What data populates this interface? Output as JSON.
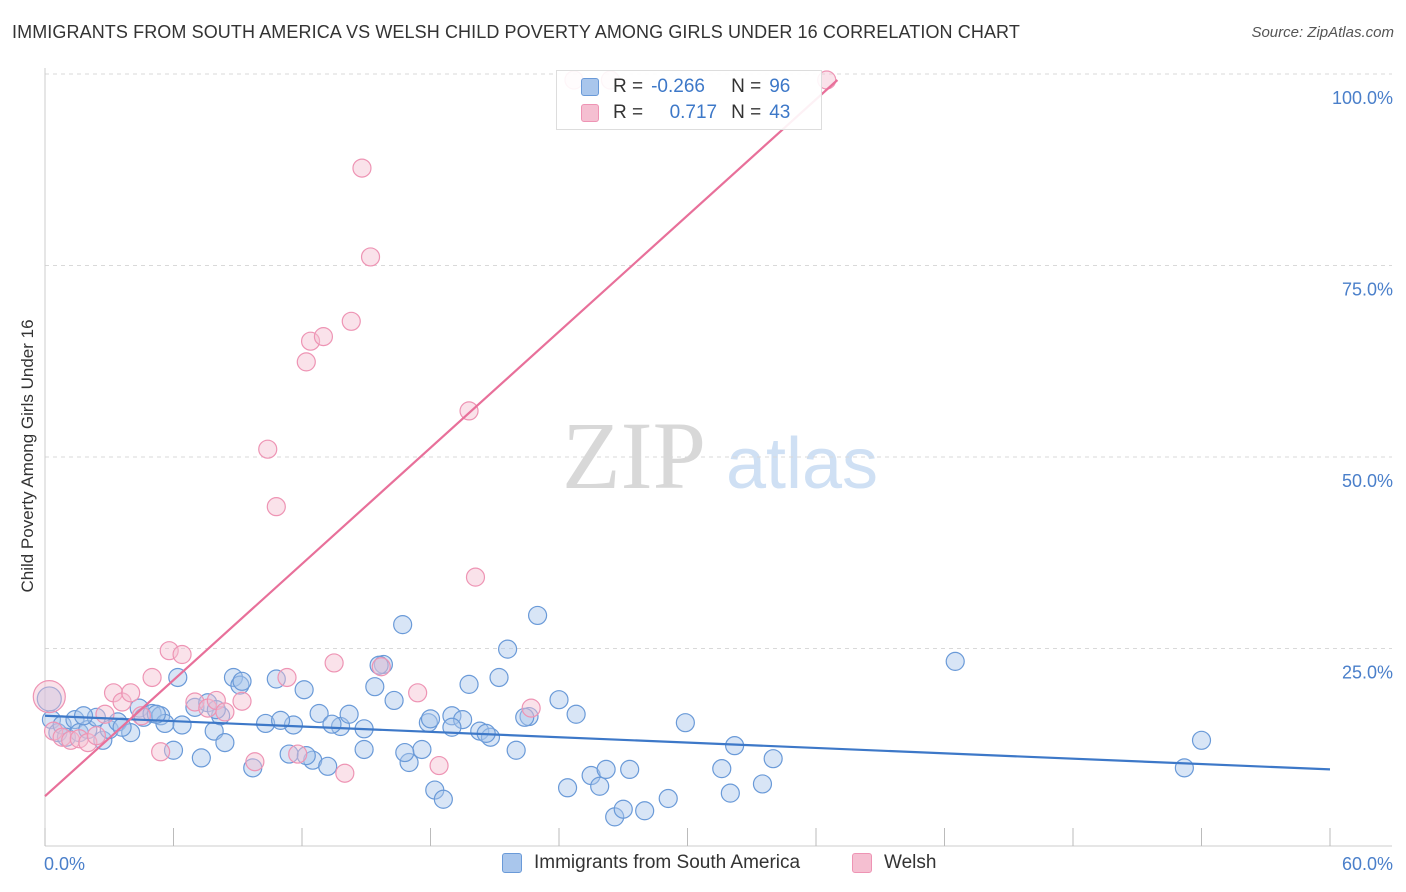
{
  "title": "IMMIGRANTS FROM SOUTH AMERICA VS WELSH CHILD POVERTY AMONG GIRLS UNDER 16 CORRELATION CHART",
  "source": "Source: ZipAtlas.com",
  "watermark": {
    "zip": "ZIP",
    "atlas": "atlas"
  },
  "legend": {
    "rows": [
      {
        "r_label": "R =",
        "r_value": "-0.266",
        "n_label": "N =",
        "n_value": "96"
      },
      {
        "r_label": "R =",
        "r_value": "0.717",
        "n_label": "N =",
        "n_value": "43"
      }
    ]
  },
  "colors": {
    "blue": "#3d78c8",
    "blue_fill": "#a9c6ec",
    "blue_stroke": "#6a9ad8",
    "pink": "#e8709a",
    "pink_fill": "#f5bfd1",
    "pink_stroke": "#ee94b4",
    "grid": "#d9d9d9",
    "tick_label": "#4a7fca"
  },
  "chart_data": {
    "type": "scatter",
    "title": "IMMIGRANTS FROM SOUTH AMERICA VS WELSH CHILD POVERTY AMONG GIRLS UNDER 16 CORRELATION CHART",
    "xlabel": "",
    "ylabel": "Child Poverty Among Girls Under 16",
    "xlim": [
      0,
      60
    ],
    "ylim": [
      0,
      100
    ],
    "x_tick_labels": [
      "0.0%",
      "60.0%"
    ],
    "y_tick_labels": [
      "100.0%",
      "75.0%",
      "50.0%",
      "25.0%"
    ],
    "y_ticks": [
      100,
      75,
      50,
      25
    ],
    "grid": true,
    "legend_position": "bottom",
    "series": [
      {
        "name": "Immigrants from South America",
        "r": -0.266,
        "n": 96,
        "trend": {
          "x": [
            0,
            60
          ],
          "y": [
            17.0,
            10.0
          ]
        },
        "points": [
          [
            0.2,
            19.2
          ],
          [
            0.3,
            16.5
          ],
          [
            0.6,
            14.8
          ],
          [
            0.8,
            15.8
          ],
          [
            1.0,
            14.2
          ],
          [
            1.4,
            16.5
          ],
          [
            1.6,
            14.8
          ],
          [
            2.0,
            15.2
          ],
          [
            2.4,
            16.8
          ],
          [
            2.7,
            13.8
          ],
          [
            3.0,
            15.2
          ],
          [
            3.4,
            16.2
          ],
          [
            4.0,
            14.8
          ],
          [
            4.4,
            18.0
          ],
          [
            4.6,
            16.8
          ],
          [
            5.0,
            17.3
          ],
          [
            5.4,
            17.0
          ],
          [
            5.6,
            16.0
          ],
          [
            6.0,
            12.5
          ],
          [
            6.4,
            15.8
          ],
          [
            7.0,
            18.1
          ],
          [
            7.3,
            11.5
          ],
          [
            7.6,
            18.7
          ],
          [
            7.9,
            15.0
          ],
          [
            8.2,
            17.0
          ],
          [
            8.4,
            13.5
          ],
          [
            8.8,
            22.0
          ],
          [
            9.1,
            21.0
          ],
          [
            9.7,
            10.2
          ],
          [
            10.3,
            16.0
          ],
          [
            10.8,
            21.8
          ],
          [
            11.4,
            12.0
          ],
          [
            11.6,
            15.8
          ],
          [
            12.1,
            20.4
          ],
          [
            12.5,
            11.2
          ],
          [
            12.8,
            17.3
          ],
          [
            13.2,
            10.4
          ],
          [
            13.8,
            15.6
          ],
          [
            14.2,
            17.2
          ],
          [
            14.9,
            12.6
          ],
          [
            15.4,
            20.8
          ],
          [
            15.8,
            23.7
          ],
          [
            16.3,
            19.0
          ],
          [
            16.7,
            28.9
          ],
          [
            17.0,
            10.9
          ],
          [
            17.6,
            12.6
          ],
          [
            17.9,
            16.1
          ],
          [
            18.2,
            7.3
          ],
          [
            18.6,
            6.1
          ],
          [
            19.0,
            17.0
          ],
          [
            19.5,
            16.5
          ],
          [
            19.8,
            21.1
          ],
          [
            20.3,
            15.0
          ],
          [
            20.8,
            14.2
          ],
          [
            21.2,
            22.0
          ],
          [
            21.6,
            25.7
          ],
          [
            22.0,
            12.5
          ],
          [
            22.6,
            16.9
          ],
          [
            23.0,
            30.1
          ],
          [
            24.0,
            19.1
          ],
          [
            24.4,
            7.6
          ],
          [
            24.8,
            17.2
          ],
          [
            25.5,
            9.2
          ],
          [
            25.9,
            7.8
          ],
          [
            26.2,
            10.0
          ],
          [
            26.6,
            3.8
          ],
          [
            27.0,
            4.8
          ],
          [
            27.3,
            10.0
          ],
          [
            28.0,
            4.6
          ],
          [
            29.1,
            6.2
          ],
          [
            29.9,
            16.1
          ],
          [
            31.6,
            10.1
          ],
          [
            32.0,
            6.9
          ],
          [
            32.2,
            13.1
          ],
          [
            33.5,
            8.1
          ],
          [
            34.0,
            11.4
          ],
          [
            42.5,
            24.1
          ],
          [
            53.2,
            10.2
          ],
          [
            54.0,
            13.8
          ],
          [
            6.2,
            22.0
          ],
          [
            9.2,
            21.5
          ],
          [
            11.0,
            16.4
          ],
          [
            13.4,
            15.9
          ],
          [
            14.9,
            15.3
          ],
          [
            15.6,
            23.6
          ],
          [
            16.8,
            12.2
          ],
          [
            18.0,
            16.6
          ],
          [
            20.6,
            14.7
          ],
          [
            22.4,
            16.8
          ],
          [
            3.6,
            15.5
          ],
          [
            1.8,
            17.0
          ],
          [
            5.2,
            17.2
          ],
          [
            8.0,
            17.8
          ],
          [
            12.2,
            11.8
          ],
          [
            19.0,
            15.5
          ]
        ]
      },
      {
        "name": "Welsh",
        "r": 0.717,
        "n": 43,
        "trend": {
          "x": [
            0,
            37
          ],
          "y": [
            6.5,
            100.0
          ]
        },
        "points": [
          [
            0.2,
            19.5
          ],
          [
            0.4,
            15.0
          ],
          [
            0.8,
            14.2
          ],
          [
            1.2,
            13.8
          ],
          [
            1.6,
            14.0
          ],
          [
            2.0,
            13.5
          ],
          [
            2.4,
            14.4
          ],
          [
            2.8,
            17.2
          ],
          [
            3.2,
            20.0
          ],
          [
            3.6,
            18.8
          ],
          [
            4.0,
            20.0
          ],
          [
            4.5,
            17.0
          ],
          [
            5.0,
            22.0
          ],
          [
            5.4,
            12.3
          ],
          [
            5.8,
            25.5
          ],
          [
            6.4,
            25.0
          ],
          [
            7.0,
            18.8
          ],
          [
            7.6,
            18.0
          ],
          [
            8.0,
            19.0
          ],
          [
            8.4,
            17.5
          ],
          [
            9.2,
            18.9
          ],
          [
            9.8,
            11.0
          ],
          [
            10.4,
            51.8
          ],
          [
            10.8,
            44.3
          ],
          [
            11.3,
            22.0
          ],
          [
            11.8,
            12.0
          ],
          [
            12.2,
            63.2
          ],
          [
            12.4,
            65.9
          ],
          [
            13.0,
            66.5
          ],
          [
            13.5,
            23.9
          ],
          [
            14.0,
            9.5
          ],
          [
            14.3,
            68.5
          ],
          [
            14.8,
            88.5
          ],
          [
            15.2,
            76.9
          ],
          [
            15.7,
            23.4
          ],
          [
            17.4,
            20.0
          ],
          [
            18.4,
            10.5
          ],
          [
            19.8,
            56.8
          ],
          [
            20.1,
            35.1
          ],
          [
            22.7,
            18.0
          ],
          [
            24.7,
            100.0
          ],
          [
            26.4,
            100.0
          ],
          [
            36.5,
            100.0
          ]
        ]
      }
    ]
  },
  "bottom_legend": [
    {
      "label": "Immigrants from South America"
    },
    {
      "label": "Welsh"
    }
  ]
}
